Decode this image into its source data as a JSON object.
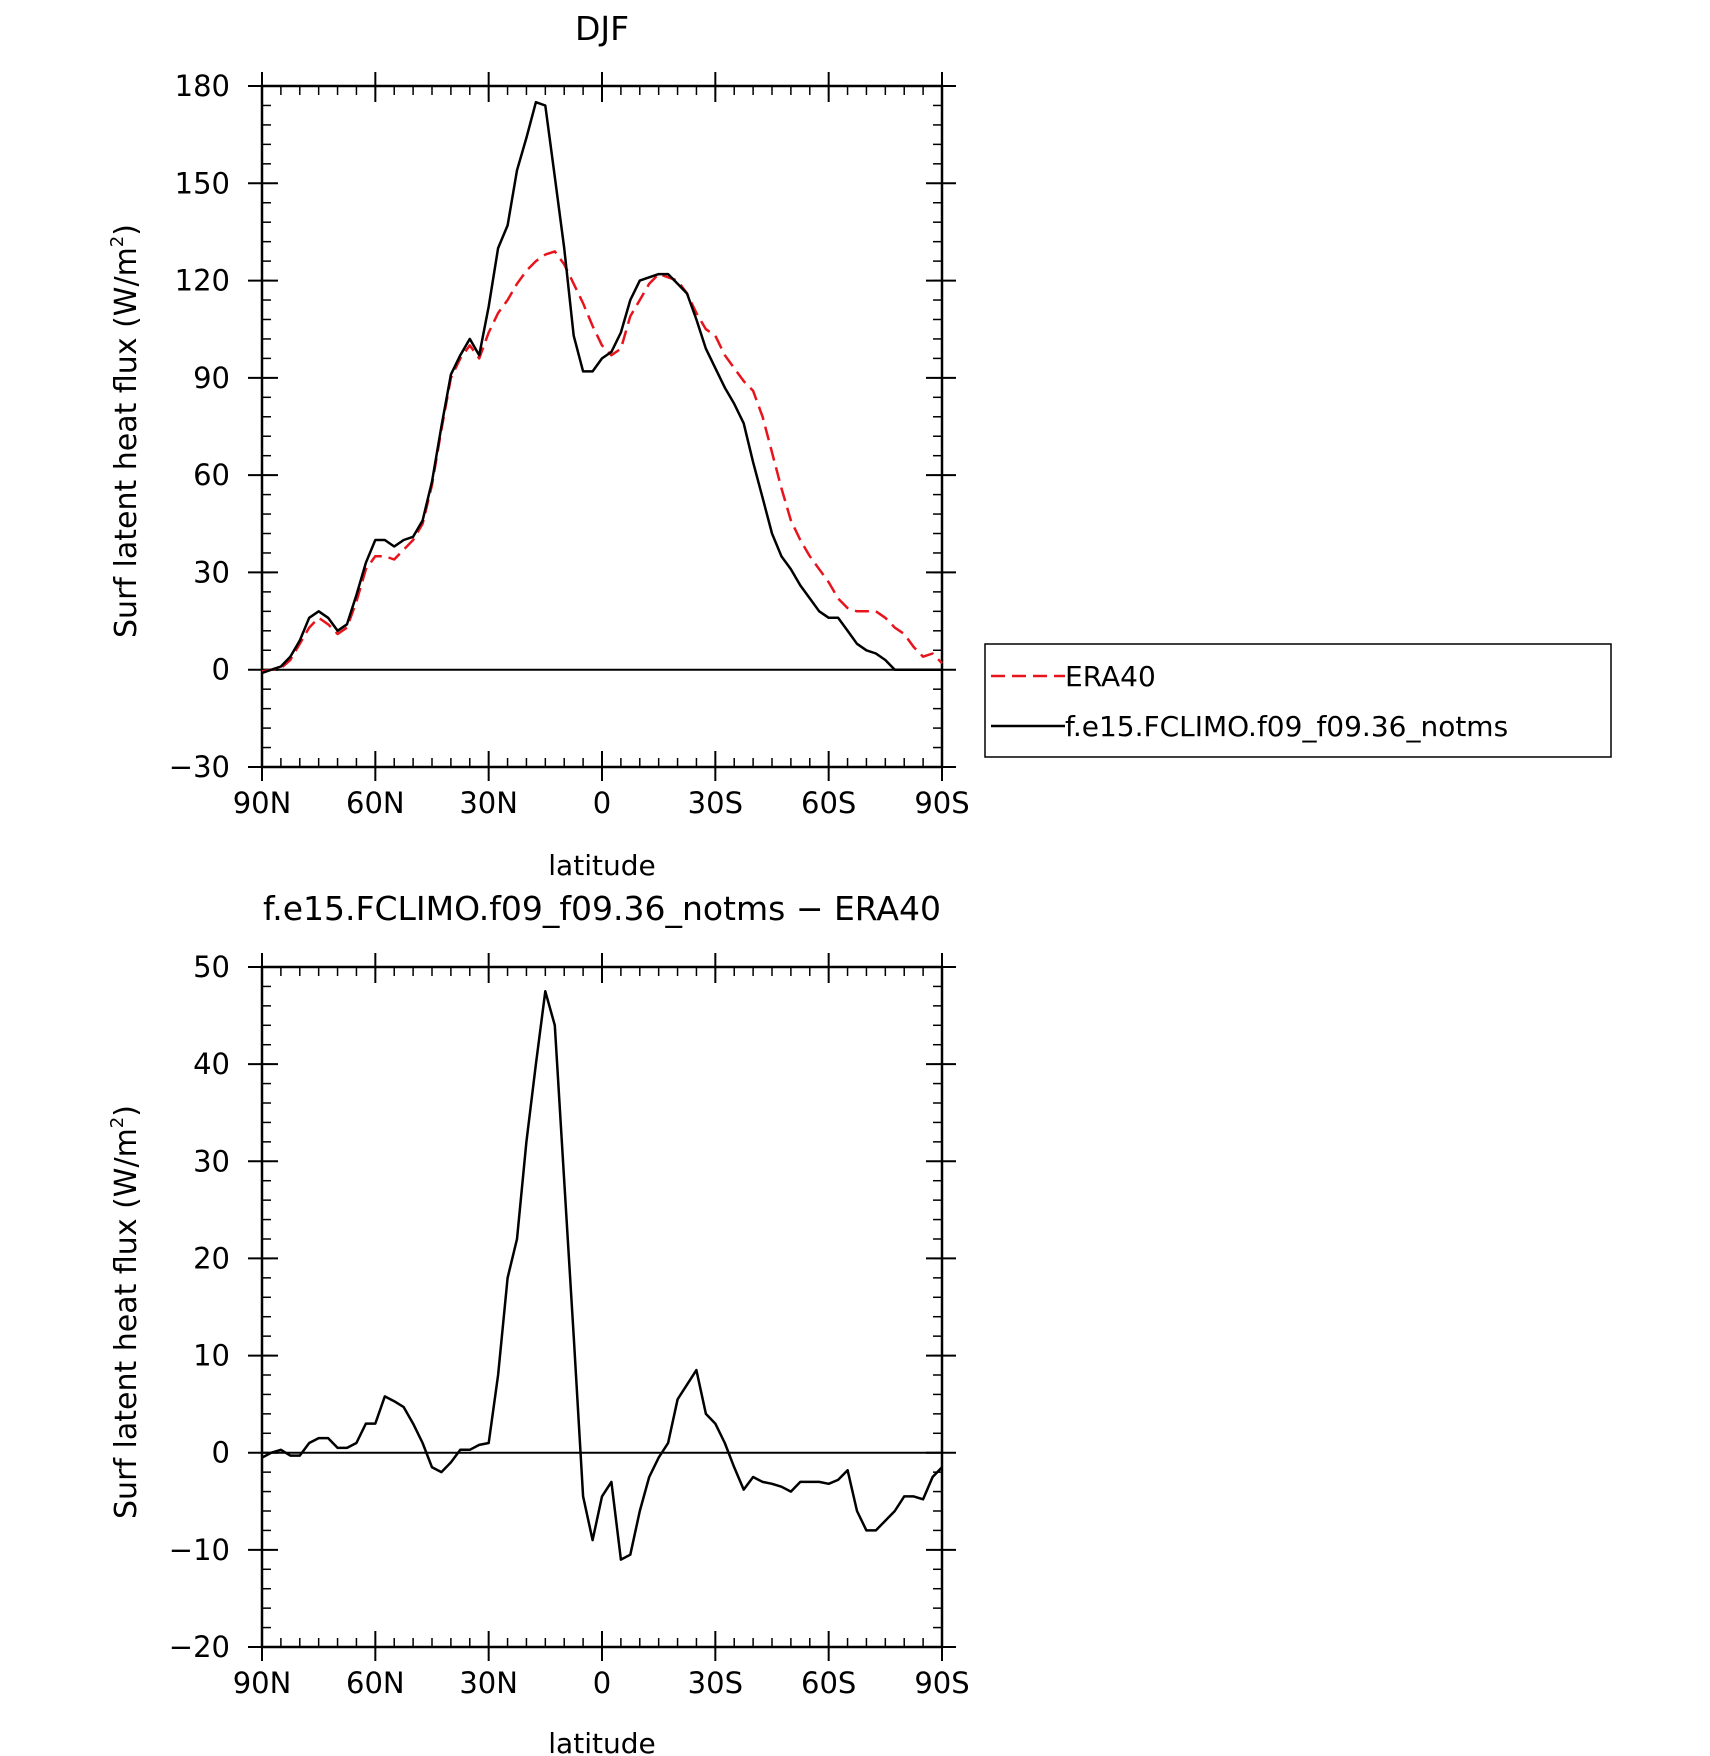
{
  "chart_data": [
    {
      "type": "line",
      "title": "DJF",
      "xlabel": "latitude",
      "ylabel": "Surf latent heat flux (W/m",
      "ylabel_sup": "2",
      "ylabel_tail": ")",
      "xlim": [
        90,
        -90
      ],
      "ylim": [
        -30,
        180
      ],
      "x_ticks": [
        90,
        60,
        30,
        0,
        -30,
        -60,
        -90
      ],
      "x_tick_labels": [
        "90N",
        "60N",
        "30N",
        "0",
        "30S",
        "60S",
        "90S"
      ],
      "y_ticks": [
        -30,
        0,
        30,
        60,
        90,
        120,
        150,
        180
      ],
      "y_tick_labels": [
        "−30",
        "0",
        "30",
        "60",
        "90",
        "120",
        "150",
        "180"
      ],
      "grid": false,
      "legend_position": "right",
      "series": [
        {
          "name": "ERA40",
          "color": "#e8141c",
          "dash": "dashed",
          "points": [
            [
              90,
              -0.5
            ],
            [
              87.5,
              0
            ],
            [
              85,
              0.5
            ],
            [
              82.5,
              3
            ],
            [
              80,
              8
            ],
            [
              77.5,
              13
            ],
            [
              75,
              16
            ],
            [
              72.5,
              14
            ],
            [
              70,
              11
            ],
            [
              67.5,
              13
            ],
            [
              65,
              21
            ],
            [
              62.5,
              31
            ],
            [
              60,
              35
            ],
            [
              57.5,
              35
            ],
            [
              55,
              34
            ],
            [
              52.5,
              37
            ],
            [
              50,
              40
            ],
            [
              47.5,
              45
            ],
            [
              45,
              57
            ],
            [
              42.5,
              74
            ],
            [
              40,
              90
            ],
            [
              37.5,
              96
            ],
            [
              35,
              100
            ],
            [
              32.5,
              96
            ],
            [
              30,
              104
            ],
            [
              27.5,
              110
            ],
            [
              25,
              114
            ],
            [
              22.5,
              119
            ],
            [
              20,
              123
            ],
            [
              17.5,
              126
            ],
            [
              15,
              128
            ],
            [
              12.5,
              129
            ],
            [
              10,
              125
            ],
            [
              7.5,
              119
            ],
            [
              5,
              113
            ],
            [
              2.5,
              106
            ],
            [
              0,
              100
            ],
            [
              -2.5,
              97
            ],
            [
              -5,
              99
            ],
            [
              -7.5,
              109
            ],
            [
              -10,
              114
            ],
            [
              -12.5,
              119
            ],
            [
              -15,
              122
            ],
            [
              -17.5,
              121
            ],
            [
              -20,
              120
            ],
            [
              -22.5,
              116
            ],
            [
              -25,
              110
            ],
            [
              -27.5,
              105
            ],
            [
              -30,
              103
            ],
            [
              -32.5,
              97
            ],
            [
              -35,
              93
            ],
            [
              -37.5,
              89
            ],
            [
              -40,
              86
            ],
            [
              -42.5,
              78
            ],
            [
              -45,
              67
            ],
            [
              -47.5,
              56
            ],
            [
              -50,
              46
            ],
            [
              -52.5,
              40
            ],
            [
              -55,
              35
            ],
            [
              -57.5,
              31
            ],
            [
              -60,
              27
            ],
            [
              -62.5,
              22
            ],
            [
              -65,
              19
            ],
            [
              -67.5,
              18
            ],
            [
              -70,
              18
            ],
            [
              -72.5,
              18
            ],
            [
              -75,
              16
            ],
            [
              -77.5,
              13
            ],
            [
              -80,
              11
            ],
            [
              -82.5,
              7
            ],
            [
              -85,
              4
            ],
            [
              -87.5,
              5
            ],
            [
              -90,
              2
            ]
          ]
        },
        {
          "name": "f.e15.FCLIMO.f09_f09.36_notms",
          "color": "#000000",
          "dash": "solid",
          "points": [
            [
              90,
              -1
            ],
            [
              87.5,
              0
            ],
            [
              85,
              1
            ],
            [
              82.5,
              4
            ],
            [
              80,
              9
            ],
            [
              77.5,
              16
            ],
            [
              75,
              18
            ],
            [
              72.5,
              16
            ],
            [
              70,
              12
            ],
            [
              67.5,
              14
            ],
            [
              65,
              23
            ],
            [
              62.5,
              33
            ],
            [
              60,
              40
            ],
            [
              57.5,
              40
            ],
            [
              55,
              38
            ],
            [
              52.5,
              40
            ],
            [
              50,
              41
            ],
            [
              47.5,
              46
            ],
            [
              45,
              58
            ],
            [
              42.5,
              75
            ],
            [
              40,
              91
            ],
            [
              37.5,
              97
            ],
            [
              35,
              102
            ],
            [
              32.5,
              97
            ],
            [
              30,
              112
            ],
            [
              27.5,
              130
            ],
            [
              25,
              137
            ],
            [
              22.5,
              154
            ],
            [
              20,
              164
            ],
            [
              17.5,
              175
            ],
            [
              15,
              174
            ],
            [
              12.5,
              152
            ],
            [
              10,
              130
            ],
            [
              7.5,
              103
            ],
            [
              5,
              92
            ],
            [
              2.5,
              92
            ],
            [
              0,
              96
            ],
            [
              -2.5,
              98
            ],
            [
              -5,
              104
            ],
            [
              -7.5,
              114
            ],
            [
              -10,
              120
            ],
            [
              -12.5,
              121
            ],
            [
              -15,
              122
            ],
            [
              -17.5,
              122
            ],
            [
              -20,
              119
            ],
            [
              -22.5,
              116
            ],
            [
              -25,
              108
            ],
            [
              -27.5,
              99
            ],
            [
              -30,
              93
            ],
            [
              -32.5,
              87
            ],
            [
              -35,
              82
            ],
            [
              -37.5,
              76
            ],
            [
              -40,
              64
            ],
            [
              -42.5,
              53
            ],
            [
              -45,
              42
            ],
            [
              -47.5,
              35
            ],
            [
              -50,
              31
            ],
            [
              -52.5,
              26
            ],
            [
              -55,
              22
            ],
            [
              -57.5,
              18
            ],
            [
              -60,
              16
            ],
            [
              -62.5,
              16
            ],
            [
              -65,
              12
            ],
            [
              -67.5,
              8
            ],
            [
              -70,
              6
            ],
            [
              -72.5,
              5
            ],
            [
              -75,
              3
            ],
            [
              -77.5,
              0
            ],
            [
              -80,
              0
            ],
            [
              -82.5,
              0
            ],
            [
              -85,
              0
            ],
            [
              -87.5,
              0
            ],
            [
              -90,
              0
            ]
          ]
        }
      ]
    },
    {
      "type": "line",
      "title": "f.e15.FCLIMO.f09_f09.36_notms − ERA40",
      "xlabel": "latitude",
      "ylabel": "Surf latent heat flux (W/m",
      "ylabel_sup": "2",
      "ylabel_tail": ")",
      "xlim": [
        90,
        -90
      ],
      "ylim": [
        -20,
        50
      ],
      "x_ticks": [
        90,
        60,
        30,
        0,
        -30,
        -60,
        -90
      ],
      "x_tick_labels": [
        "90N",
        "60N",
        "30N",
        "0",
        "30S",
        "60S",
        "90S"
      ],
      "y_ticks": [
        -20,
        -10,
        0,
        10,
        20,
        30,
        40,
        50
      ],
      "y_tick_labels": [
        "−20",
        "−10",
        "0",
        "10",
        "20",
        "30",
        "40",
        "50"
      ],
      "grid": false,
      "series": [
        {
          "color": "#000000",
          "dash": "solid",
          "points": [
            [
              90,
              -0.5
            ],
            [
              87.5,
              0
            ],
            [
              85,
              0.3
            ],
            [
              82.5,
              -0.3
            ],
            [
              80,
              -0.3
            ],
            [
              77.5,
              1
            ],
            [
              75,
              1.5
            ],
            [
              72.5,
              1.5
            ],
            [
              70,
              0.5
            ],
            [
              67.5,
              0.5
            ],
            [
              65,
              1
            ],
            [
              62.5,
              3
            ],
            [
              60,
              3
            ],
            [
              57.5,
              5.8
            ],
            [
              55,
              5.3
            ],
            [
              52.5,
              4.7
            ],
            [
              50,
              3
            ],
            [
              47.5,
              1
            ],
            [
              45,
              -1.5
            ],
            [
              42.5,
              -2
            ],
            [
              40,
              -1
            ],
            [
              37.5,
              0.3
            ],
            [
              35,
              0.3
            ],
            [
              32.5,
              0.8
            ],
            [
              30,
              1
            ],
            [
              27.5,
              8
            ],
            [
              25,
              18
            ],
            [
              22.5,
              22
            ],
            [
              20,
              32
            ],
            [
              17.5,
              40
            ],
            [
              15,
              47.5
            ],
            [
              12.5,
              44
            ],
            [
              10,
              28
            ],
            [
              7.5,
              12
            ],
            [
              5,
              -4.5
            ],
            [
              2.5,
              -9
            ],
            [
              0,
              -4.5
            ],
            [
              -2.5,
              -3
            ],
            [
              -5,
              -11
            ],
            [
              -7.5,
              -10.5
            ],
            [
              -10,
              -6
            ],
            [
              -12.5,
              -2.5
            ],
            [
              -15,
              -0.5
            ],
            [
              -17.5,
              1
            ],
            [
              -20,
              5.5
            ],
            [
              -22.5,
              7
            ],
            [
              -25,
              8.5
            ],
            [
              -27.5,
              4
            ],
            [
              -30,
              3
            ],
            [
              -32.5,
              1
            ],
            [
              -35,
              -1.5
            ],
            [
              -37.5,
              -3.8
            ],
            [
              -40,
              -2.5
            ],
            [
              -42.5,
              -3
            ],
            [
              -45,
              -3.2
            ],
            [
              -47.5,
              -3.5
            ],
            [
              -50,
              -4
            ],
            [
              -52.5,
              -3
            ],
            [
              -55,
              -3
            ],
            [
              -57.5,
              -3
            ],
            [
              -60,
              -3.2
            ],
            [
              -62.5,
              -2.8
            ],
            [
              -65,
              -1.8
            ],
            [
              -67.5,
              -6
            ],
            [
              -70,
              -8
            ],
            [
              -72.5,
              -8
            ],
            [
              -75,
              -7
            ],
            [
              -77.5,
              -6
            ],
            [
              -80,
              -4.5
            ],
            [
              -82.5,
              -4.5
            ],
            [
              -85,
              -4.8
            ],
            [
              -87.5,
              -2.5
            ],
            [
              -90,
              -1.5
            ]
          ]
        }
      ]
    }
  ]
}
